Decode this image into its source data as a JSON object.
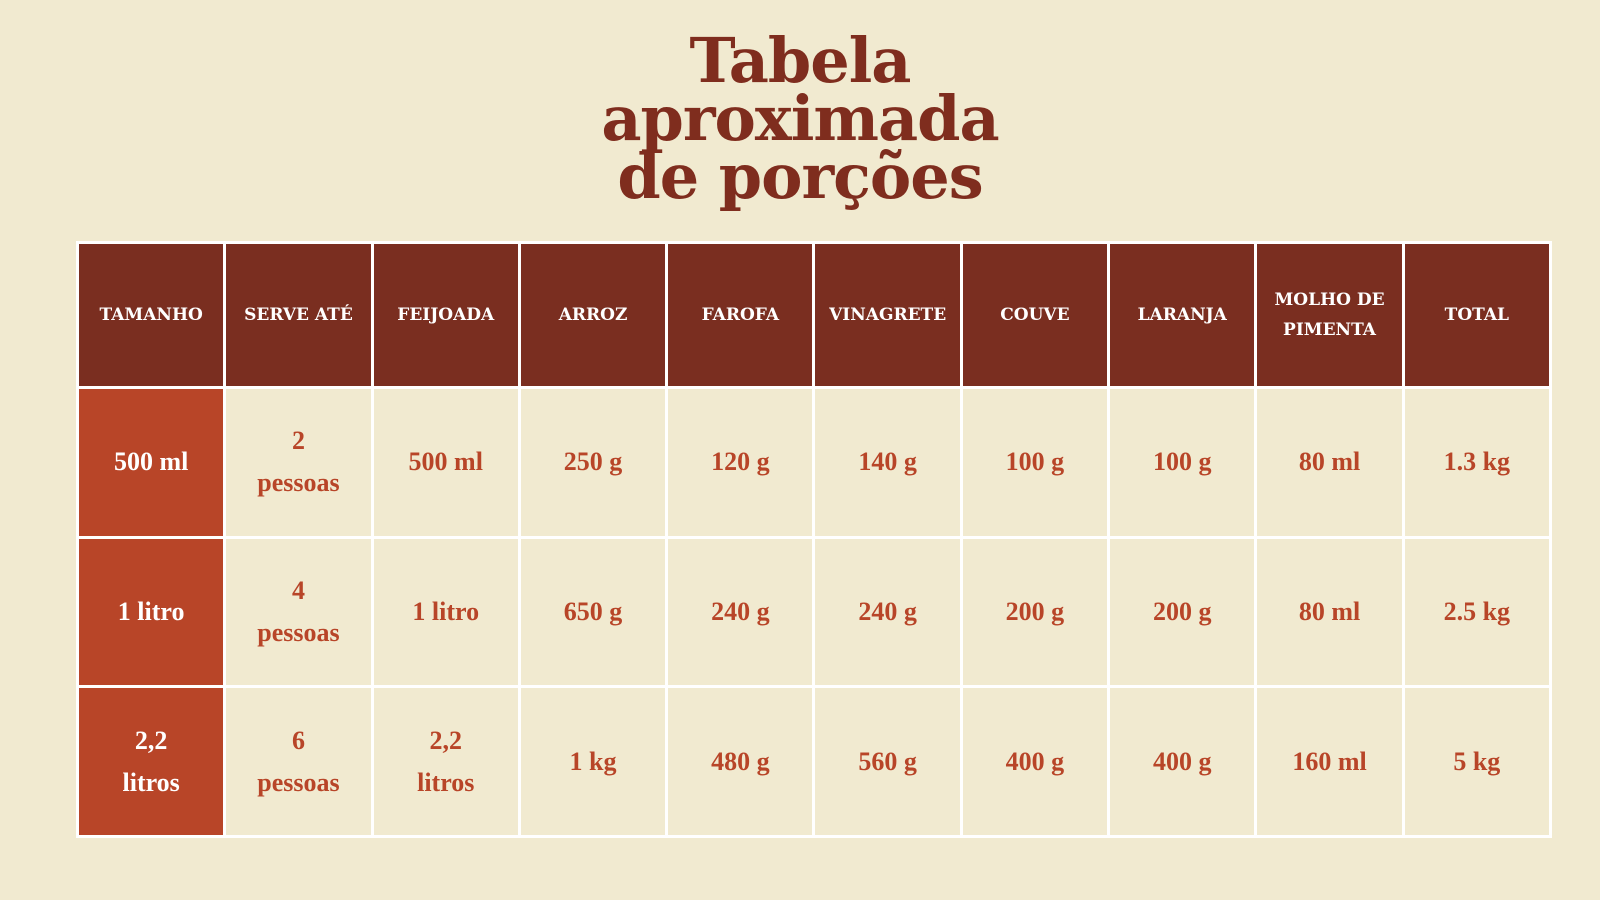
{
  "title": "Tabela\naproximada\nde porções",
  "table": {
    "header": [
      "TAMANHO",
      "SERVE ATÉ",
      "FEIJOADA",
      "ARROZ",
      "FAROFA",
      "VINAGRETE",
      "COUVE",
      "LARANJA",
      "MOLHO DE\nPIMENTA",
      "TOTAL"
    ],
    "rows": [
      [
        "500 ml",
        "2\npessoas",
        "500  ml",
        "250 g",
        "120 g",
        "140 g",
        "100 g",
        "100 g",
        "80 ml",
        "1.3 kg"
      ],
      [
        "1 litro",
        "4\npessoas",
        "1 litro",
        "650 g",
        "240 g",
        "240 g",
        "200 g",
        "200 g",
        "80 ml",
        "2.5 kg"
      ],
      [
        "2,2\nlitros",
        "6\npessoas",
        "2,2\nlitros",
        "1 kg",
        "480 g",
        "560 g",
        "400 g",
        "400 g",
        "160 ml",
        "5 kg"
      ]
    ]
  }
}
